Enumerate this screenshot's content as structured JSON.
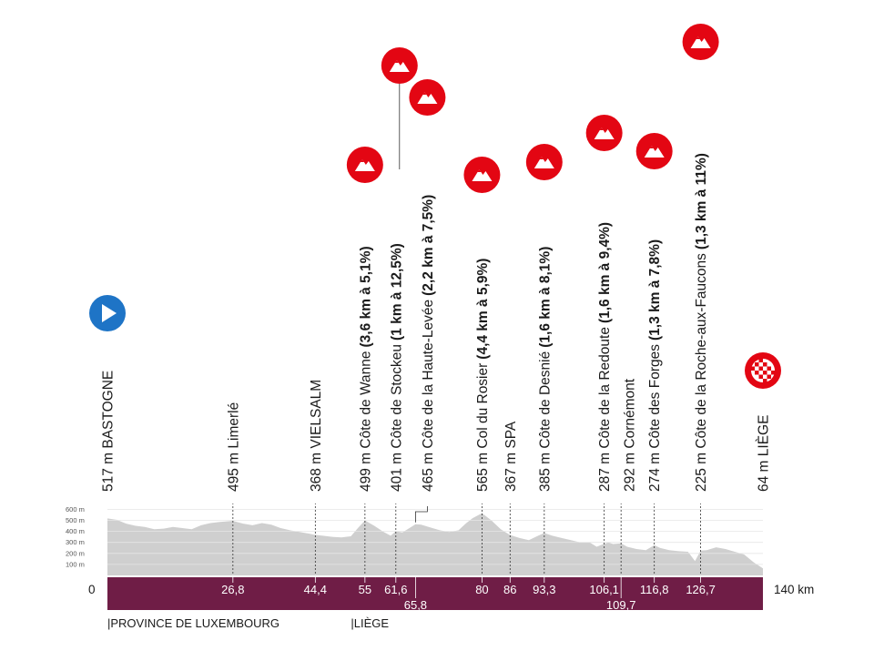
{
  "colors": {
    "profile": "#cfcfcf",
    "profile_light": "#e6e6e6",
    "band": "#6f1d46",
    "climb_red": "#e30613",
    "start_blue": "#1e74c6",
    "text": "#1a1a1a"
  },
  "icons": {
    "start": "play-icon",
    "climb": "mountain-icon",
    "finish": "checkered-flag-icon"
  },
  "chart_data": {
    "type": "area",
    "total_label": "140 km",
    "zero_label": "0",
    "y_ticks": [
      "100 m",
      "200 m",
      "300 m",
      "400 m",
      "500 m",
      "600 m"
    ],
    "y_values": [
      100,
      200,
      300,
      400,
      500,
      600
    ],
    "xlim": [
      0,
      140
    ],
    "ylim": [
      0,
      650
    ],
    "profile": [
      [
        0,
        517
      ],
      [
        2,
        505
      ],
      [
        4,
        470
      ],
      [
        6,
        450
      ],
      [
        8,
        440
      ],
      [
        10,
        420
      ],
      [
        12,
        425
      ],
      [
        14,
        440
      ],
      [
        16,
        430
      ],
      [
        18,
        420
      ],
      [
        20,
        455
      ],
      [
        22,
        475
      ],
      [
        24,
        485
      ],
      [
        26.8,
        495
      ],
      [
        29,
        470
      ],
      [
        31,
        455
      ],
      [
        33,
        475
      ],
      [
        35,
        460
      ],
      [
        37,
        430
      ],
      [
        39,
        410
      ],
      [
        41,
        395
      ],
      [
        43,
        380
      ],
      [
        44.4,
        368
      ],
      [
        46,
        360
      ],
      [
        48,
        350
      ],
      [
        50,
        345
      ],
      [
        52,
        355
      ],
      [
        53.5,
        430
      ],
      [
        55,
        499
      ],
      [
        57,
        450
      ],
      [
        59,
        395
      ],
      [
        60.5,
        360
      ],
      [
        61.6,
        401
      ],
      [
        63,
        390
      ],
      [
        64.5,
        430
      ],
      [
        65.8,
        465
      ],
      [
        67,
        460
      ],
      [
        69,
        435
      ],
      [
        71,
        410
      ],
      [
        73,
        395
      ],
      [
        75,
        410
      ],
      [
        76.5,
        470
      ],
      [
        78,
        520
      ],
      [
        80,
        565
      ],
      [
        82,
        500
      ],
      [
        84,
        420
      ],
      [
        86,
        367
      ],
      [
        88,
        340
      ],
      [
        90,
        320
      ],
      [
        92,
        360
      ],
      [
        93.3,
        385
      ],
      [
        95,
        360
      ],
      [
        97,
        340
      ],
      [
        99,
        320
      ],
      [
        101,
        300
      ],
      [
        103,
        300
      ],
      [
        104.5,
        260
      ],
      [
        106.1,
        287
      ],
      [
        107,
        300
      ],
      [
        108,
        285
      ],
      [
        109.7,
        292
      ],
      [
        111,
        260
      ],
      [
        113,
        240
      ],
      [
        115,
        230
      ],
      [
        116.8,
        274
      ],
      [
        118,
        250
      ],
      [
        120,
        230
      ],
      [
        122,
        220
      ],
      [
        124,
        215
      ],
      [
        125.5,
        130
      ],
      [
        126.7,
        225
      ],
      [
        128,
        230
      ],
      [
        130,
        255
      ],
      [
        132,
        240
      ],
      [
        134,
        215
      ],
      [
        136,
        190
      ],
      [
        138,
        120
      ],
      [
        140,
        64
      ]
    ],
    "points": [
      {
        "km": 0,
        "alt": 517,
        "name": "BASTOGNE",
        "label": "517 m BASTOGNE",
        "km_label": "",
        "icon": "start"
      },
      {
        "km": 26.8,
        "alt": 495,
        "name": "Limerlé",
        "label": "495 m Limerlé",
        "km_label": "26,8"
      },
      {
        "km": 44.4,
        "alt": 368,
        "name": "VIELSALM",
        "label": "368 m VIELSALM",
        "km_label": "44,4"
      },
      {
        "km": 55,
        "alt": 499,
        "name": "Côte de Wanne",
        "label": "499 m Côte de Wanne",
        "detail": "(3,6 km à 5,1%)",
        "km_label": "55",
        "icon": "climb"
      },
      {
        "km": 61.6,
        "alt": 401,
        "name": "Côte de Stockeu",
        "label": "401 m Côte de Stockeu",
        "detail": "(1 km à 12,5%)",
        "km_label": "61,6",
        "icon": "climb"
      },
      {
        "km": 65.8,
        "alt": 465,
        "name": "Côte de la Haute-Levée",
        "label": "465 m Côte de la Haute-Levée",
        "detail": "(2,2 km à 7,5%)",
        "km_label": "65,8",
        "icon": "climb"
      },
      {
        "km": 80,
        "alt": 565,
        "name": "Col du Rosier",
        "label": "565 m Col du Rosier",
        "detail": "(4,4 km à 5,9%)",
        "km_label": "80",
        "icon": "climb"
      },
      {
        "km": 86,
        "alt": 367,
        "name": "SPA",
        "label": "367 m SPA",
        "km_label": "86"
      },
      {
        "km": 93.3,
        "alt": 385,
        "name": "Côte de Desnié",
        "label": "385 m Côte de Desnié",
        "detail": "(1,6 km à 8,1%)",
        "km_label": "93,3",
        "icon": "climb"
      },
      {
        "km": 106.1,
        "alt": 287,
        "name": "Côte de la Redoute",
        "label": "287 m Côte de la Redoute",
        "detail": "(1,6 km à 9,4%)",
        "km_label": "106,1",
        "icon": "climb"
      },
      {
        "km": 109.7,
        "alt": 292,
        "name": "Cornémont",
        "label": "292 m Cornémont",
        "km_label": "109,7"
      },
      {
        "km": 116.8,
        "alt": 274,
        "name": "Côte des Forges",
        "label": "274 m Côte des Forges",
        "detail": "(1,3 km à 7,8%)",
        "km_label": "116,8",
        "icon": "climb"
      },
      {
        "km": 126.7,
        "alt": 225,
        "name": "Côte de la Roche-aux-Faucons",
        "label": "225 m Côte de la Roche-aux-Faucons",
        "detail": "(1,3 km à 11%)",
        "km_label": "126,7",
        "icon": "climb"
      },
      {
        "km": 140,
        "alt": 64,
        "name": "LIÈGE",
        "label": "64 m LIÈGE",
        "km_label": "",
        "icon": "finish"
      }
    ]
  },
  "regions": [
    {
      "label": "|PROVINCE DE LUXEMBOURG",
      "km": 0
    },
    {
      "label": "|LIÈGE",
      "km": 52
    }
  ]
}
